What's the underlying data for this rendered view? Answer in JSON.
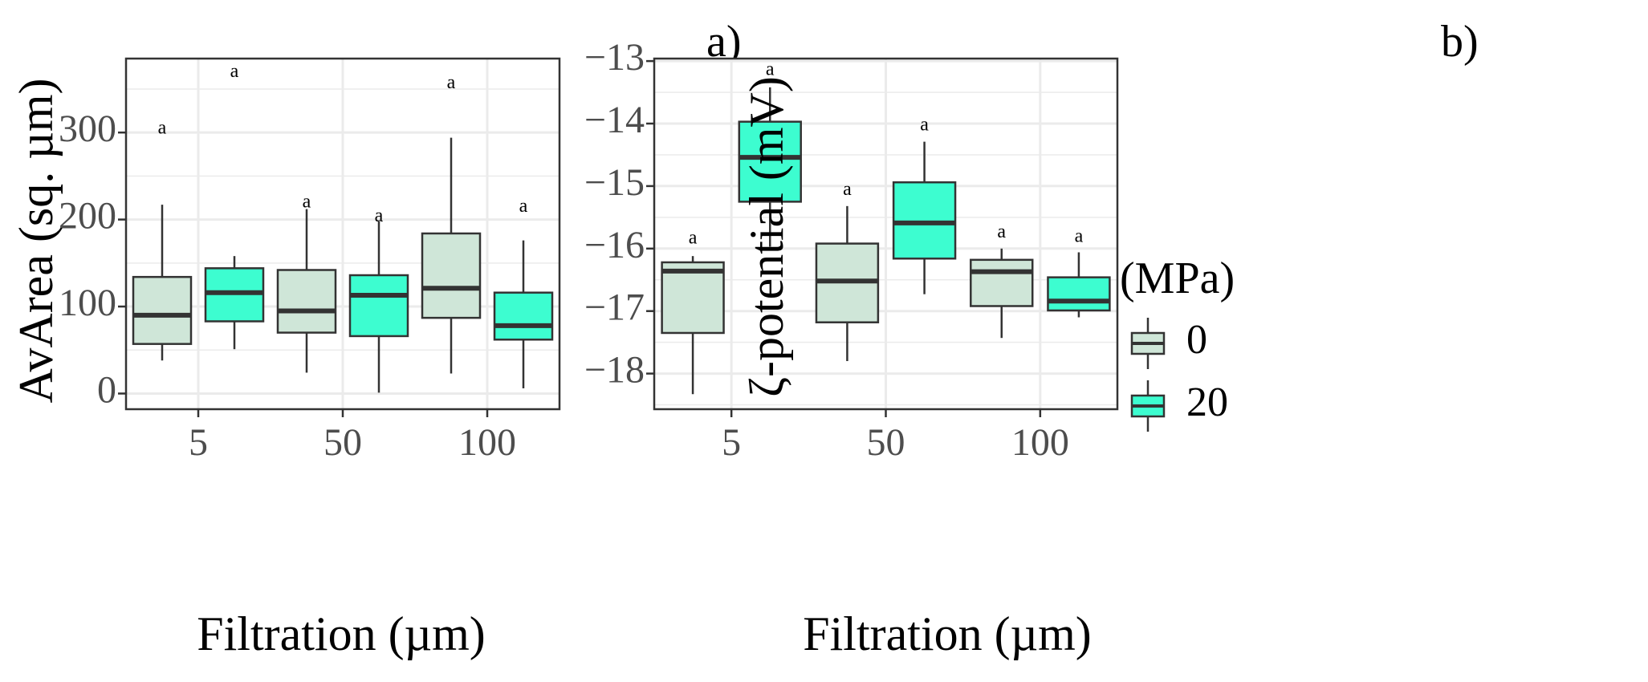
{
  "chart_data": [
    {
      "type": "boxplot",
      "panel_label": "a)",
      "xlabel": "Filtration (µm)",
      "ylabel": "AvArea (sq. µm)",
      "ylim": [
        -18,
        385
      ],
      "yticks": [
        0,
        100,
        200,
        300
      ],
      "categories": [
        "5",
        "50",
        "100"
      ],
      "series": [
        {
          "name": "0",
          "boxes": [
            {
              "category": "5",
              "min": 38,
              "q1": 57,
              "median": 90,
              "q3": 134,
              "max": 217,
              "letter": "a",
              "letter_y": 304
            },
            {
              "category": "50",
              "min": 24,
              "q1": 70,
              "median": 95,
              "q3": 142,
              "max": 212,
              "letter": "a",
              "letter_y": 219
            },
            {
              "category": "100",
              "min": 23,
              "q1": 87,
              "median": 121,
              "q3": 184,
              "max": 294,
              "letter": "a",
              "letter_y": 356
            }
          ]
        },
        {
          "name": "20",
          "boxes": [
            {
              "category": "5",
              "min": 51,
              "q1": 83,
              "median": 116,
              "q3": 144,
              "max": 158,
              "letter": "a",
              "letter_y": 369
            },
            {
              "category": "50",
              "min": 1,
              "q1": 66,
              "median": 113,
              "q3": 136,
              "max": 198,
              "letter": "a",
              "letter_y": 203
            },
            {
              "category": "100",
              "min": 6,
              "q1": 62,
              "median": 78,
              "q3": 116,
              "max": 176,
              "letter": "a",
              "letter_y": 214
            }
          ]
        }
      ]
    },
    {
      "type": "boxplot",
      "panel_label": "b)",
      "xlabel": "Filtration (µm)",
      "ylabel": "ζ-potential (mV)",
      "ylim": [
        -18.57,
        -12.96
      ],
      "yticks": [
        -18,
        -17,
        -16,
        -15,
        -14,
        -13
      ],
      "categories": [
        "5",
        "50",
        "100"
      ],
      "series": [
        {
          "name": "0",
          "boxes": [
            {
              "category": "5",
              "min": -18.33,
              "q1": -17.35,
              "median": -16.36,
              "q3": -16.22,
              "max": -16.12,
              "letter": "a",
              "letter_y": -15.85
            },
            {
              "category": "50",
              "min": -17.8,
              "q1": -17.18,
              "median": -16.52,
              "q3": -15.92,
              "max": -15.32,
              "letter": "a",
              "letter_y": -15.07
            },
            {
              "category": "100",
              "min": -17.43,
              "q1": -16.92,
              "median": -16.37,
              "q3": -16.18,
              "max": -16.0,
              "letter": "a",
              "letter_y": -15.75
            }
          ]
        },
        {
          "name": "20",
          "boxes": [
            {
              "category": "5",
              "min": -15.97,
              "q1": -15.25,
              "median": -14.54,
              "q3": -13.97,
              "max": -13.42,
              "letter": "a",
              "letter_y": -13.15
            },
            {
              "category": "50",
              "min": -16.73,
              "q1": -16.16,
              "median": -15.59,
              "q3": -14.94,
              "max": -14.29,
              "letter": "a",
              "letter_y": -14.04
            },
            {
              "category": "100",
              "min": -17.1,
              "q1": -16.99,
              "median": -16.84,
              "q3": -16.46,
              "max": -16.06,
              "letter": "a",
              "letter_y": -15.82
            }
          ]
        }
      ]
    }
  ],
  "legend": {
    "title": "(MPa)",
    "items": [
      {
        "label": "0",
        "color": "#cfe6d8"
      },
      {
        "label": "20",
        "color": "#3dfdd0"
      }
    ]
  },
  "colors": {
    "panel_border": "#333333",
    "grid": "#ebebeb",
    "box_stroke": "#333333"
  }
}
